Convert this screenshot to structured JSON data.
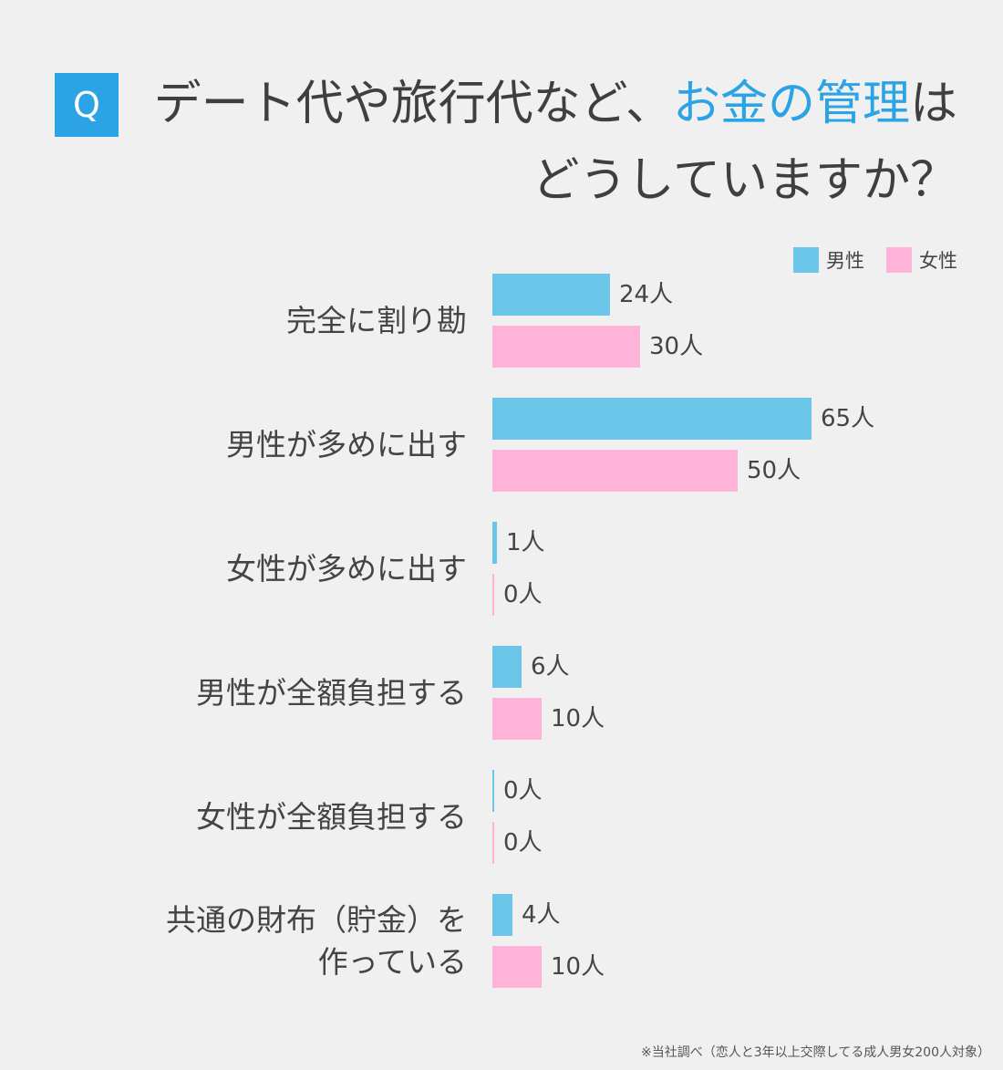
{
  "header": {
    "badge": "Q",
    "title_line1_pre": "デート代や旅行代など、",
    "title_line1_highlight": "お金の管理",
    "title_line1_post": "は",
    "title_line2": "どうしていますか？"
  },
  "colors": {
    "accent": "#2ba3e4",
    "male": "#6cc6ea",
    "female": "#ffb3d8",
    "background": "#f0f0f0"
  },
  "chart_data": {
    "type": "bar",
    "orientation": "horizontal",
    "legend_position": "top-right",
    "categories": [
      [
        "完全に割り勘"
      ],
      [
        "男性が多めに出す"
      ],
      [
        "女性が多めに出す"
      ],
      [
        "男性が全額負担する"
      ],
      [
        "女性が全額負担する"
      ],
      [
        "共通の財布（貯金）を",
        "作っている"
      ]
    ],
    "unit": "人",
    "xlim": [
      0,
      65
    ],
    "series": [
      {
        "name": "男性",
        "values": [
          24,
          65,
          1,
          6,
          0,
          4
        ]
      },
      {
        "name": "女性",
        "values": [
          30,
          50,
          0,
          10,
          0,
          10
        ]
      }
    ]
  },
  "footnote": "※当社調べ（恋人と3年以上交際してる成人男女200人対象）"
}
